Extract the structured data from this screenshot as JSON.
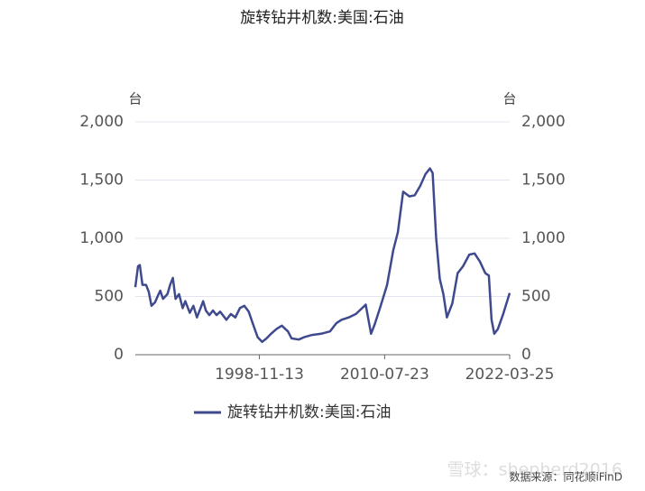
{
  "chart_data": {
    "type": "line",
    "title": "旋转钻井机数:美国:石油",
    "y_unit": "台",
    "y2_unit": "台",
    "source": "数据来源：同花顺iFinD",
    "watermark": "雪球：shepherd2016",
    "x": [
      "1987-04-15",
      "1987-07-15",
      "1987-09-15",
      "1987-12-15",
      "1988-04-15",
      "1988-07-15",
      "1988-10-15",
      "1989-02-15",
      "1989-06-15",
      "1989-08-15",
      "1989-11-15",
      "1990-04-15",
      "1990-07-15",
      "1990-10-15",
      "1991-01-15",
      "1991-05-15",
      "1991-09-15",
      "1991-12-15",
      "1992-05-15",
      "1992-09-15",
      "1993-01-15",
      "1993-05-15",
      "1993-08-15",
      "1993-11-15",
      "1994-03-15",
      "1994-07-15",
      "1994-11-15",
      "1995-03-15",
      "1995-10-15",
      "1996-03-15",
      "1996-08-15",
      "1997-01-15",
      "1997-06-15",
      "1997-11-15",
      "1998-04-15",
      "1998-09-15",
      "1999-02-15",
      "1999-07-15",
      "1999-12-15",
      "2000-06-15",
      "2000-12-15",
      "2001-07-15",
      "2001-11-15",
      "2002-07-15",
      "2003-01-15",
      "2003-10-15",
      "2004-08-15",
      "2005-06-15",
      "2006-01-15",
      "2006-07-15",
      "2007-03-15",
      "2007-11-15",
      "2008-06-15",
      "2008-10-15",
      "2009-04-15",
      "2009-08-15",
      "2010-02-15",
      "2010-10-15",
      "2011-05-15",
      "2011-10-15",
      "2012-04-15",
      "2012-11-15",
      "2013-05-15",
      "2013-11-15",
      "2014-05-15",
      "2014-10-15",
      "2015-01-15",
      "2015-05-15",
      "2015-09-15",
      "2016-01-15",
      "2016-05-15",
      "2016-11-15",
      "2017-05-15",
      "2017-11-15",
      "2018-06-15",
      "2018-12-15",
      "2019-06-15",
      "2019-12-15",
      "2020-04-15",
      "2020-07-15",
      "2020-10-15",
      "2021-02-15",
      "2021-08-15",
      "2022-03-25"
    ],
    "xlim": [
      "1987-04-15",
      "2022-03-25"
    ],
    "xticks": [
      "1998-11-13",
      "2010-07-23",
      "2022-03-25"
    ],
    "series": [
      {
        "name": "旋转钻井机数:美国:石油",
        "color": "#3f4a8e",
        "values": [
          580,
          760,
          770,
          600,
          600,
          540,
          420,
          450,
          520,
          550,
          480,
          520,
          600,
          660,
          480,
          520,
          400,
          460,
          360,
          420,
          320,
          400,
          460,
          380,
          340,
          380,
          340,
          370,
          300,
          350,
          320,
          400,
          420,
          370,
          260,
          150,
          110,
          140,
          180,
          220,
          250,
          200,
          140,
          130,
          150,
          170,
          180,
          200,
          270,
          300,
          320,
          350,
          400,
          430,
          180,
          260,
          400,
          600,
          900,
          1050,
          1400,
          1360,
          1370,
          1450,
          1550,
          1600,
          1560,
          1000,
          650,
          520,
          320,
          440,
          700,
          760,
          860,
          870,
          800,
          700,
          680,
          300,
          180,
          220,
          350,
          530
        ]
      }
    ],
    "ylim": [
      0,
      2000
    ],
    "yticks": [
      0,
      500,
      {
        "value": 1000,
        "label": "1,000"
      },
      {
        "value": 1500,
        "label": "1,500"
      },
      {
        "value": 2000,
        "label": "2,000"
      }
    ],
    "y2lim": [
      0,
      2000
    ],
    "y2ticks": [
      0,
      500,
      {
        "value": 1000,
        "label": "1,000"
      },
      {
        "value": 1500,
        "label": "1,500"
      },
      {
        "value": 2000,
        "label": "2,000"
      }
    ],
    "grid": true,
    "legend": "bottom"
  }
}
